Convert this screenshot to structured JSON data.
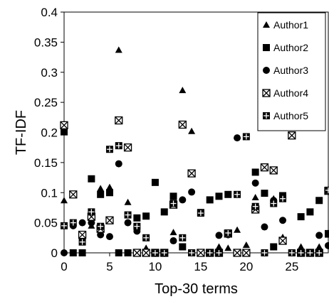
{
  "chart_data": {
    "type": "scatter",
    "xlabel": "Top-30 terms",
    "ylabel": "TF-IDF",
    "xlim": [
      0,
      29
    ],
    "ylim": [
      0,
      0.4
    ],
    "x_ticks": [
      "0",
      "5",
      "10",
      "15",
      "20",
      "25"
    ],
    "y_ticks": [
      "0",
      "0.05",
      "0.1",
      "0.15",
      "0.2",
      "0.25",
      "0.3",
      "0.35",
      "0.4"
    ],
    "grid": false,
    "legend_position": "top-right",
    "x": [
      0,
      1,
      2,
      3,
      4,
      5,
      6,
      7,
      8,
      9,
      10,
      11,
      12,
      13,
      14,
      15,
      16,
      17,
      18,
      19,
      20,
      21,
      22,
      23,
      24,
      25,
      26,
      27,
      28,
      29
    ],
    "series": [
      {
        "name": "Author1",
        "marker": "triangle",
        "values": [
          0.087,
          0,
          0,
          0.045,
          0.107,
          0.109,
          0.337,
          0.084,
          0,
          0.008,
          0,
          0,
          0.034,
          0.27,
          0.202,
          0,
          0,
          0.01,
          0.008,
          0.038,
          0.013,
          0.092,
          0,
          0.09,
          0.026,
          0,
          0.01,
          0,
          0.01,
          0.03
        ]
      },
      {
        "name": "Author2",
        "marker": "square",
        "values": [
          0.201,
          0,
          0,
          0.123,
          0.097,
          0.1,
          0,
          0,
          0.058,
          0.061,
          0.117,
          0.068,
          0.094,
          0.01,
          0,
          0.067,
          0.088,
          0.094,
          0.097,
          0,
          0,
          0.134,
          0.099,
          0.01,
          0.095,
          0,
          0.06,
          0.068,
          0.087,
          0.032
        ]
      },
      {
        "name": "Author3",
        "marker": "circle",
        "values": [
          0,
          0.045,
          0.05,
          0.05,
          0.03,
          0.027,
          0.148,
          0.05,
          0.036,
          0,
          0,
          0,
          0.02,
          0.088,
          0.101,
          0,
          0,
          0.029,
          0.03,
          0.191,
          0,
          0.116,
          0.043,
          0.087,
          0.054,
          0,
          0,
          0,
          0.029,
          0.012
        ]
      },
      {
        "name": "Author4",
        "marker": "x-box",
        "values": [
          0.212,
          0.097,
          0.03,
          0.06,
          0.04,
          0.054,
          0.22,
          0.175,
          0,
          0,
          0,
          0,
          0.08,
          0.213,
          0.132,
          0,
          0,
          0,
          0.032,
          0,
          0,
          0.072,
          0.142,
          0.137,
          0.02,
          0.195,
          0,
          0,
          0,
          0.103
        ]
      },
      {
        "name": "Author5",
        "marker": "plus-box",
        "values": [
          0.045,
          0.05,
          0.018,
          0.068,
          0.044,
          0.172,
          0.178,
          0.063,
          0.044,
          0.025,
          0,
          0,
          0.082,
          0.025,
          0,
          0.066,
          0,
          0,
          0.033,
          0.097,
          0.193,
          0.077,
          0,
          0.082,
          0.09,
          0,
          0,
          0,
          0,
          0.104
        ]
      }
    ]
  }
}
